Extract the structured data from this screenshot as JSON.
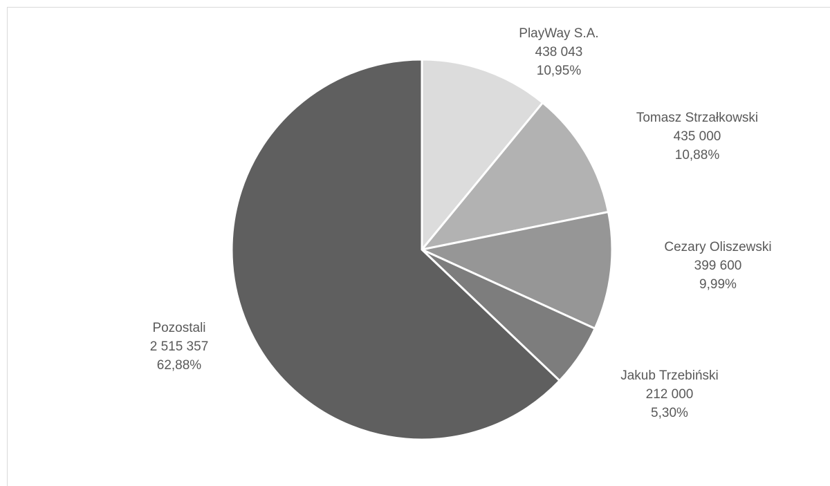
{
  "chart_data": {
    "type": "pie",
    "title": "",
    "start_angle_deg": 0,
    "direction": "clockwise",
    "slices": [
      {
        "label": "PlayWay S.A.",
        "value": 438043,
        "value_text": "438 043",
        "percent_text": "10,95%",
        "color": "#dcdcdc"
      },
      {
        "label": "Tomasz Strzałkowski",
        "value": 435000,
        "value_text": "435 000",
        "percent_text": "10,88%",
        "color": "#b2b2b2"
      },
      {
        "label": "Cezary Oliszewski",
        "value": 399600,
        "value_text": "399 600",
        "percent_text": "9,99%",
        "color": "#969696"
      },
      {
        "label": "Jakub Trzebiński",
        "value": 212000,
        "value_text": "212 000",
        "percent_text": "5,30%",
        "color": "#7d7d7d"
      },
      {
        "label": "Pozostali",
        "value": 2515357,
        "value_text": "2 515 357",
        "percent_text": "62,88%",
        "color": "#5f5f5f"
      }
    ],
    "legend": "none",
    "data_labels": "outside"
  }
}
